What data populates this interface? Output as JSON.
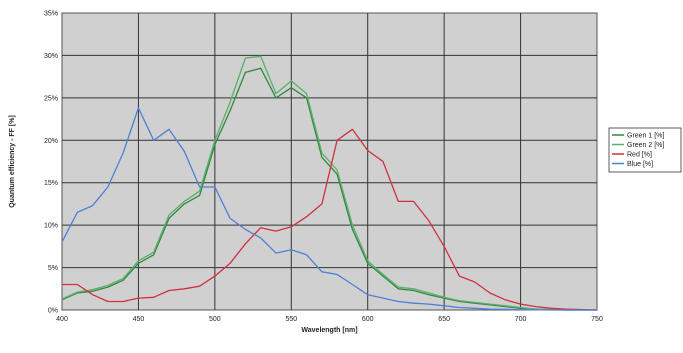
{
  "chart_data": {
    "type": "line",
    "title": "",
    "xlabel": "Wavelength [nm]",
    "ylabel": "Quantum efficiency - FF [%]",
    "xlim": [
      400,
      750
    ],
    "ylim": [
      0,
      35
    ],
    "x_ticks": [
      "400",
      "450",
      "500",
      "550",
      "600",
      "650",
      "700",
      "750"
    ],
    "y_ticks": [
      "0%",
      "5%",
      "10%",
      "15%",
      "20%",
      "25%",
      "30%",
      "35%"
    ],
    "grid": true,
    "legend_position": "right",
    "plot_background": "#d0d0d0",
    "series": [
      {
        "name": "Green 1 [%]",
        "color": "#2e8b3e",
        "points": [
          [
            400,
            1.2
          ],
          [
            410,
            2.0
          ],
          [
            420,
            2.2
          ],
          [
            430,
            2.7
          ],
          [
            440,
            3.5
          ],
          [
            450,
            5.5
          ],
          [
            460,
            6.5
          ],
          [
            470,
            10.8
          ],
          [
            480,
            12.5
          ],
          [
            490,
            13.5
          ],
          [
            500,
            19.5
          ],
          [
            510,
            23.5
          ],
          [
            520,
            28.0
          ],
          [
            530,
            28.5
          ],
          [
            540,
            25.0
          ],
          [
            550,
            26.2
          ],
          [
            560,
            25.0
          ],
          [
            570,
            18.0
          ],
          [
            580,
            16.0
          ],
          [
            590,
            9.5
          ],
          [
            600,
            5.5
          ],
          [
            610,
            4.0
          ],
          [
            620,
            2.5
          ],
          [
            630,
            2.3
          ],
          [
            640,
            1.8
          ],
          [
            650,
            1.4
          ],
          [
            660,
            1.0
          ],
          [
            670,
            0.8
          ],
          [
            680,
            0.6
          ],
          [
            690,
            0.4
          ],
          [
            700,
            0.2
          ],
          [
            710,
            0.1
          ],
          [
            720,
            0.05
          ],
          [
            730,
            0.0
          ],
          [
            750,
            0.0
          ]
        ]
      },
      {
        "name": "Green 2 [%]",
        "color": "#5cae6a",
        "points": [
          [
            400,
            1.3
          ],
          [
            410,
            2.1
          ],
          [
            420,
            2.4
          ],
          [
            430,
            2.9
          ],
          [
            440,
            3.7
          ],
          [
            450,
            5.8
          ],
          [
            460,
            6.8
          ],
          [
            470,
            11.2
          ],
          [
            480,
            12.8
          ],
          [
            490,
            14.0
          ],
          [
            500,
            20.0
          ],
          [
            510,
            24.5
          ],
          [
            520,
            29.7
          ],
          [
            530,
            29.9
          ],
          [
            540,
            25.5
          ],
          [
            550,
            27.0
          ],
          [
            560,
            25.5
          ],
          [
            570,
            18.5
          ],
          [
            580,
            16.5
          ],
          [
            590,
            10.0
          ],
          [
            600,
            5.8
          ],
          [
            610,
            4.2
          ],
          [
            620,
            2.7
          ],
          [
            630,
            2.5
          ],
          [
            640,
            2.0
          ],
          [
            650,
            1.5
          ],
          [
            660,
            1.1
          ],
          [
            670,
            0.9
          ],
          [
            680,
            0.7
          ],
          [
            690,
            0.5
          ],
          [
            700,
            0.3
          ],
          [
            710,
            0.1
          ],
          [
            720,
            0.05
          ],
          [
            730,
            0.0
          ],
          [
            750,
            0.0
          ]
        ]
      },
      {
        "name": "Red [%]",
        "color": "#d03040",
        "points": [
          [
            400,
            3.0
          ],
          [
            410,
            3.0
          ],
          [
            420,
            1.8
          ],
          [
            430,
            1.0
          ],
          [
            440,
            1.0
          ],
          [
            450,
            1.4
          ],
          [
            460,
            1.5
          ],
          [
            470,
            2.3
          ],
          [
            480,
            2.5
          ],
          [
            490,
            2.8
          ],
          [
            500,
            4.0
          ],
          [
            510,
            5.5
          ],
          [
            520,
            7.8
          ],
          [
            530,
            9.7
          ],
          [
            540,
            9.3
          ],
          [
            550,
            9.8
          ],
          [
            560,
            11.0
          ],
          [
            570,
            12.5
          ],
          [
            580,
            20.0
          ],
          [
            590,
            21.3
          ],
          [
            600,
            18.8
          ],
          [
            610,
            17.5
          ],
          [
            620,
            12.8
          ],
          [
            630,
            12.8
          ],
          [
            640,
            10.5
          ],
          [
            650,
            7.5
          ],
          [
            660,
            4.0
          ],
          [
            670,
            3.3
          ],
          [
            680,
            2.0
          ],
          [
            690,
            1.2
          ],
          [
            700,
            0.7
          ],
          [
            710,
            0.4
          ],
          [
            720,
            0.2
          ],
          [
            730,
            0.1
          ],
          [
            750,
            0.0
          ]
        ]
      },
      {
        "name": "Blue [%]",
        "color": "#4f7fd6",
        "points": [
          [
            400,
            8.0
          ],
          [
            410,
            11.5
          ],
          [
            420,
            12.3
          ],
          [
            430,
            14.5
          ],
          [
            440,
            18.5
          ],
          [
            450,
            23.8
          ],
          [
            460,
            20.0
          ],
          [
            470,
            21.3
          ],
          [
            480,
            18.7
          ],
          [
            490,
            14.5
          ],
          [
            500,
            14.5
          ],
          [
            510,
            10.8
          ],
          [
            520,
            9.5
          ],
          [
            530,
            8.5
          ],
          [
            540,
            6.7
          ],
          [
            550,
            7.1
          ],
          [
            560,
            6.5
          ],
          [
            570,
            4.5
          ],
          [
            580,
            4.2
          ],
          [
            590,
            3.0
          ],
          [
            600,
            1.8
          ],
          [
            610,
            1.4
          ],
          [
            620,
            1.0
          ],
          [
            630,
            0.8
          ],
          [
            640,
            0.7
          ],
          [
            650,
            0.5
          ],
          [
            660,
            0.3
          ],
          [
            670,
            0.2
          ],
          [
            680,
            0.1
          ],
          [
            700,
            0.05
          ],
          [
            720,
            0.0
          ],
          [
            750,
            0.0
          ]
        ]
      }
    ]
  }
}
